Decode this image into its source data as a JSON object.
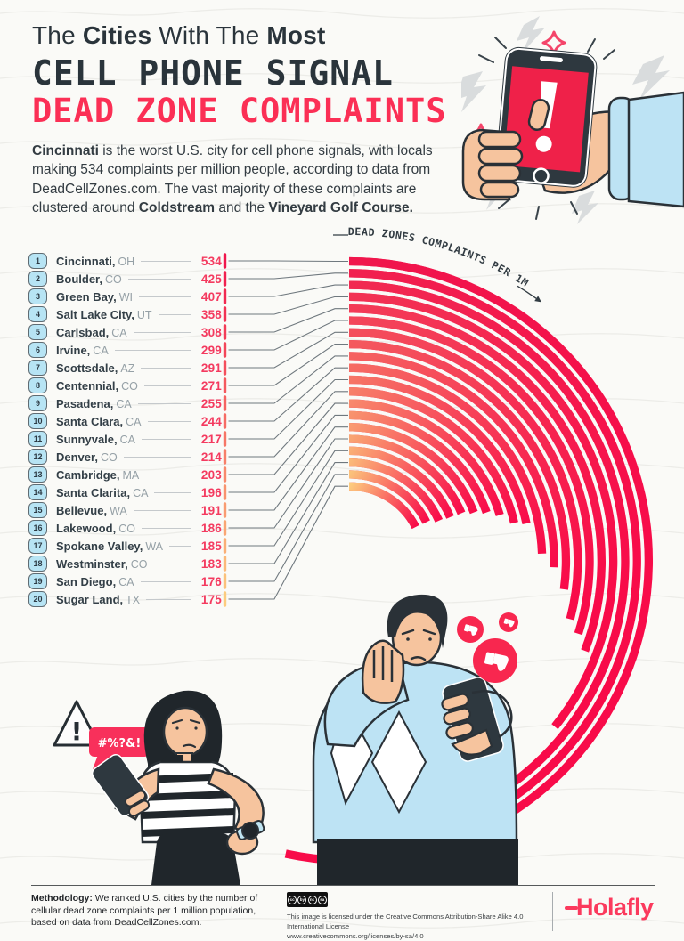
{
  "header": {
    "title_line1": [
      {
        "t": "The ",
        "b": 0
      },
      {
        "t": "Cities",
        "b": 1
      },
      {
        "t": " With The ",
        "b": 0
      },
      {
        "t": "Most",
        "b": 1
      }
    ],
    "title_line2": "CELL PHONE SIGNAL",
    "title_line3": "DEAD ZONE COMPLAINTS",
    "intro": [
      {
        "t": "Cincinnati",
        "b": 1
      },
      {
        "t": " is the worst U.S. city for cell phone signals, with locals making 534 complaints per million people, according to data from DeadCellZones.com. The vast majority of these complaints are clustered around ",
        "b": 0
      },
      {
        "t": "Coldstream",
        "b": 1
      },
      {
        "t": " and the ",
        "b": 0
      },
      {
        "t": "Vineyard Golf Course.",
        "b": 1
      }
    ]
  },
  "chart_data": {
    "type": "radial-bar",
    "title": "DEAD ZONES COMPLAINTS PER 1M",
    "value_label": "dead zone complaints per 1 million people",
    "direction": "clockwise",
    "degrees_per_unit": 0.36,
    "rows": [
      {
        "rank": 1,
        "city": "Cincinnati",
        "state": "OH",
        "value": 534
      },
      {
        "rank": 2,
        "city": "Boulder",
        "state": "CO",
        "value": 425
      },
      {
        "rank": 3,
        "city": "Green Bay",
        "state": "WI",
        "value": 407
      },
      {
        "rank": 4,
        "city": "Salt Lake City",
        "state": "UT",
        "value": 358
      },
      {
        "rank": 5,
        "city": "Carlsbad",
        "state": "CA",
        "value": 308
      },
      {
        "rank": 6,
        "city": "Irvine",
        "state": "CA",
        "value": 299
      },
      {
        "rank": 7,
        "city": "Scottsdale",
        "state": "AZ",
        "value": 291
      },
      {
        "rank": 8,
        "city": "Centennial",
        "state": "CO",
        "value": 271
      },
      {
        "rank": 9,
        "city": "Pasadena",
        "state": "CA",
        "value": 255
      },
      {
        "rank": 10,
        "city": "Santa Clara",
        "state": "CA",
        "value": 244
      },
      {
        "rank": 11,
        "city": "Sunnyvale",
        "state": "CA",
        "value": 217
      },
      {
        "rank": 12,
        "city": "Denver",
        "state": "CO",
        "value": 214
      },
      {
        "rank": 13,
        "city": "Cambridge",
        "state": "MA",
        "value": 203
      },
      {
        "rank": 14,
        "city": "Santa Clarita",
        "state": "CA",
        "value": 196
      },
      {
        "rank": 15,
        "city": "Bellevue",
        "state": "WA",
        "value": 191
      },
      {
        "rank": 16,
        "city": "Lakewood",
        "state": "CO",
        "value": 186
      },
      {
        "rank": 17,
        "city": "Spokane Valley",
        "state": "WA",
        "value": 185
      },
      {
        "rank": 18,
        "city": "Westminster",
        "state": "CO",
        "value": 183
      },
      {
        "rank": 19,
        "city": "San Diego",
        "state": "CA",
        "value": 176
      },
      {
        "rank": 20,
        "city": "Sugar Land",
        "state": "TX",
        "value": 175
      }
    ],
    "palette": {
      "arc_start_rank1": "#F0164C",
      "arc_start_rank20": "#FCCC7E",
      "arc_sweep_end": "#F80B49",
      "value_text": "#F43A5F",
      "connector": "#6F787E",
      "title_red": "#FB2F55",
      "dark": "#2A343B"
    }
  },
  "illustrations": {
    "phone_alert_text": "!",
    "warning_sign_text": "!",
    "speech_bubble_text": "#%?&!"
  },
  "footer": {
    "methodology_label": "Methodology:",
    "methodology_text": " We ranked U.S. cities by the number of cellular dead zone complaints per 1 million population, based on data from DeadCellZones.com.",
    "cc_icons": [
      "cc",
      "by",
      "nc",
      "sa"
    ],
    "license_line1": "This image is licensed under the Creative Commons Attribution-Share Alike 4.0 International License",
    "license_line2": "www.creativecommons.org/licenses/by-sa/4.0",
    "brand": "Holafly"
  }
}
